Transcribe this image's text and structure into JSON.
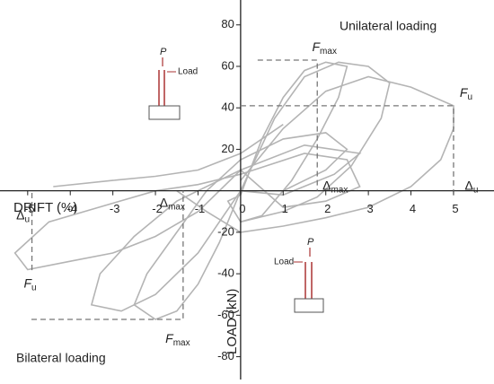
{
  "chart_data": {
    "type": "line",
    "x_label": "DRIFT (%)",
    "y_label": "LOAD (kN)",
    "xlim": [
      -5.65,
      5.95
    ],
    "ylim": [
      -91,
      92
    ],
    "xticks": [
      -5,
      -4,
      -3,
      -2,
      -1,
      0,
      1,
      2,
      3,
      4,
      5
    ],
    "yticks": [
      -80,
      -60,
      -40,
      -20,
      20,
      40,
      60,
      80
    ],
    "color": "#b4b4b4",
    "series": [
      {
        "x": [
          0,
          0.5,
          1,
          1.5,
          2,
          2.5,
          2.3,
          1.8,
          1.2,
          0.5,
          0,
          -0.3,
          0
        ],
        "values": [
          -2,
          25,
          45,
          58,
          62,
          60,
          45,
          25,
          5,
          -12,
          -15,
          -5,
          -2
        ]
      },
      {
        "x": [
          0,
          0.8,
          1.5,
          2.3,
          3,
          3.5,
          3.3,
          2.6,
          1.8,
          1,
          0
        ],
        "values": [
          0,
          35,
          55,
          62,
          60,
          52,
          35,
          12,
          -3,
          -10,
          -15
        ]
      },
      {
        "x": [
          0,
          1,
          2,
          3,
          4,
          5,
          5,
          4.7,
          4,
          3,
          2,
          1,
          0,
          -0.8,
          -1.5
        ],
        "values": [
          5,
          30,
          48,
          55,
          50,
          41,
          30,
          15,
          2,
          -8,
          -13,
          -17,
          -20,
          -10,
          0
        ]
      },
      {
        "x": [
          -4.4,
          -3,
          -2,
          -1,
          0,
          1
        ],
        "values": [
          2,
          5,
          7,
          10,
          18,
          32
        ]
      },
      {
        "x": [
          0,
          -0.5,
          -1,
          -1.5,
          -2,
          -2.5,
          -2.2,
          -1.5,
          -0.8,
          0,
          1,
          2,
          2.5,
          2,
          1,
          0
        ],
        "values": [
          0,
          -25,
          -45,
          -58,
          -62,
          -55,
          -40,
          -20,
          0,
          15,
          25,
          28,
          20,
          10,
          0,
          0
        ]
      },
      {
        "x": [
          0,
          -1,
          -2,
          -2.8,
          -3.5,
          -3.3,
          -2.5,
          -1.5,
          0,
          1.5,
          2.8,
          2.2,
          1,
          0
        ],
        "values": [
          0,
          -30,
          -50,
          -58,
          -55,
          -40,
          -22,
          -5,
          10,
          22,
          18,
          8,
          -2,
          0
        ]
      },
      {
        "x": [
          0,
          -1,
          -2,
          -3,
          -4,
          -5,
          -5.3,
          -4.5,
          -3,
          -2,
          -1,
          0,
          1.5,
          2.5,
          2.8,
          2,
          1,
          0
        ],
        "values": [
          10,
          -10,
          -22,
          -30,
          -34,
          -38,
          -30,
          -15,
          -6,
          0,
          3,
          8,
          18,
          15,
          2,
          -5,
          -8,
          10
        ]
      }
    ],
    "reference_points": [
      {
        "x": 1.8,
        "y": 63,
        "force": "F",
        "force_sub": "max",
        "drift": "Δ",
        "drift_sub": "max"
      },
      {
        "x": 5,
        "y": 41,
        "force": "F",
        "force_sub": "u",
        "drift": "Δ",
        "drift_sub": "u"
      },
      {
        "x": -1.35,
        "y": -62,
        "force": "F",
        "force_sub": "max",
        "drift": "Δ",
        "drift_sub": "max"
      },
      {
        "x": -4.9,
        "y": -38,
        "force": "F",
        "force_sub": "u",
        "drift": "Δ",
        "drift_sub": "u"
      }
    ],
    "annotations": [
      "Unilateral loading",
      "Bilateral loading"
    ],
    "insets": [
      {
        "force": "P",
        "load": "Load"
      },
      {
        "force": "P",
        "load": "Load"
      }
    ]
  }
}
